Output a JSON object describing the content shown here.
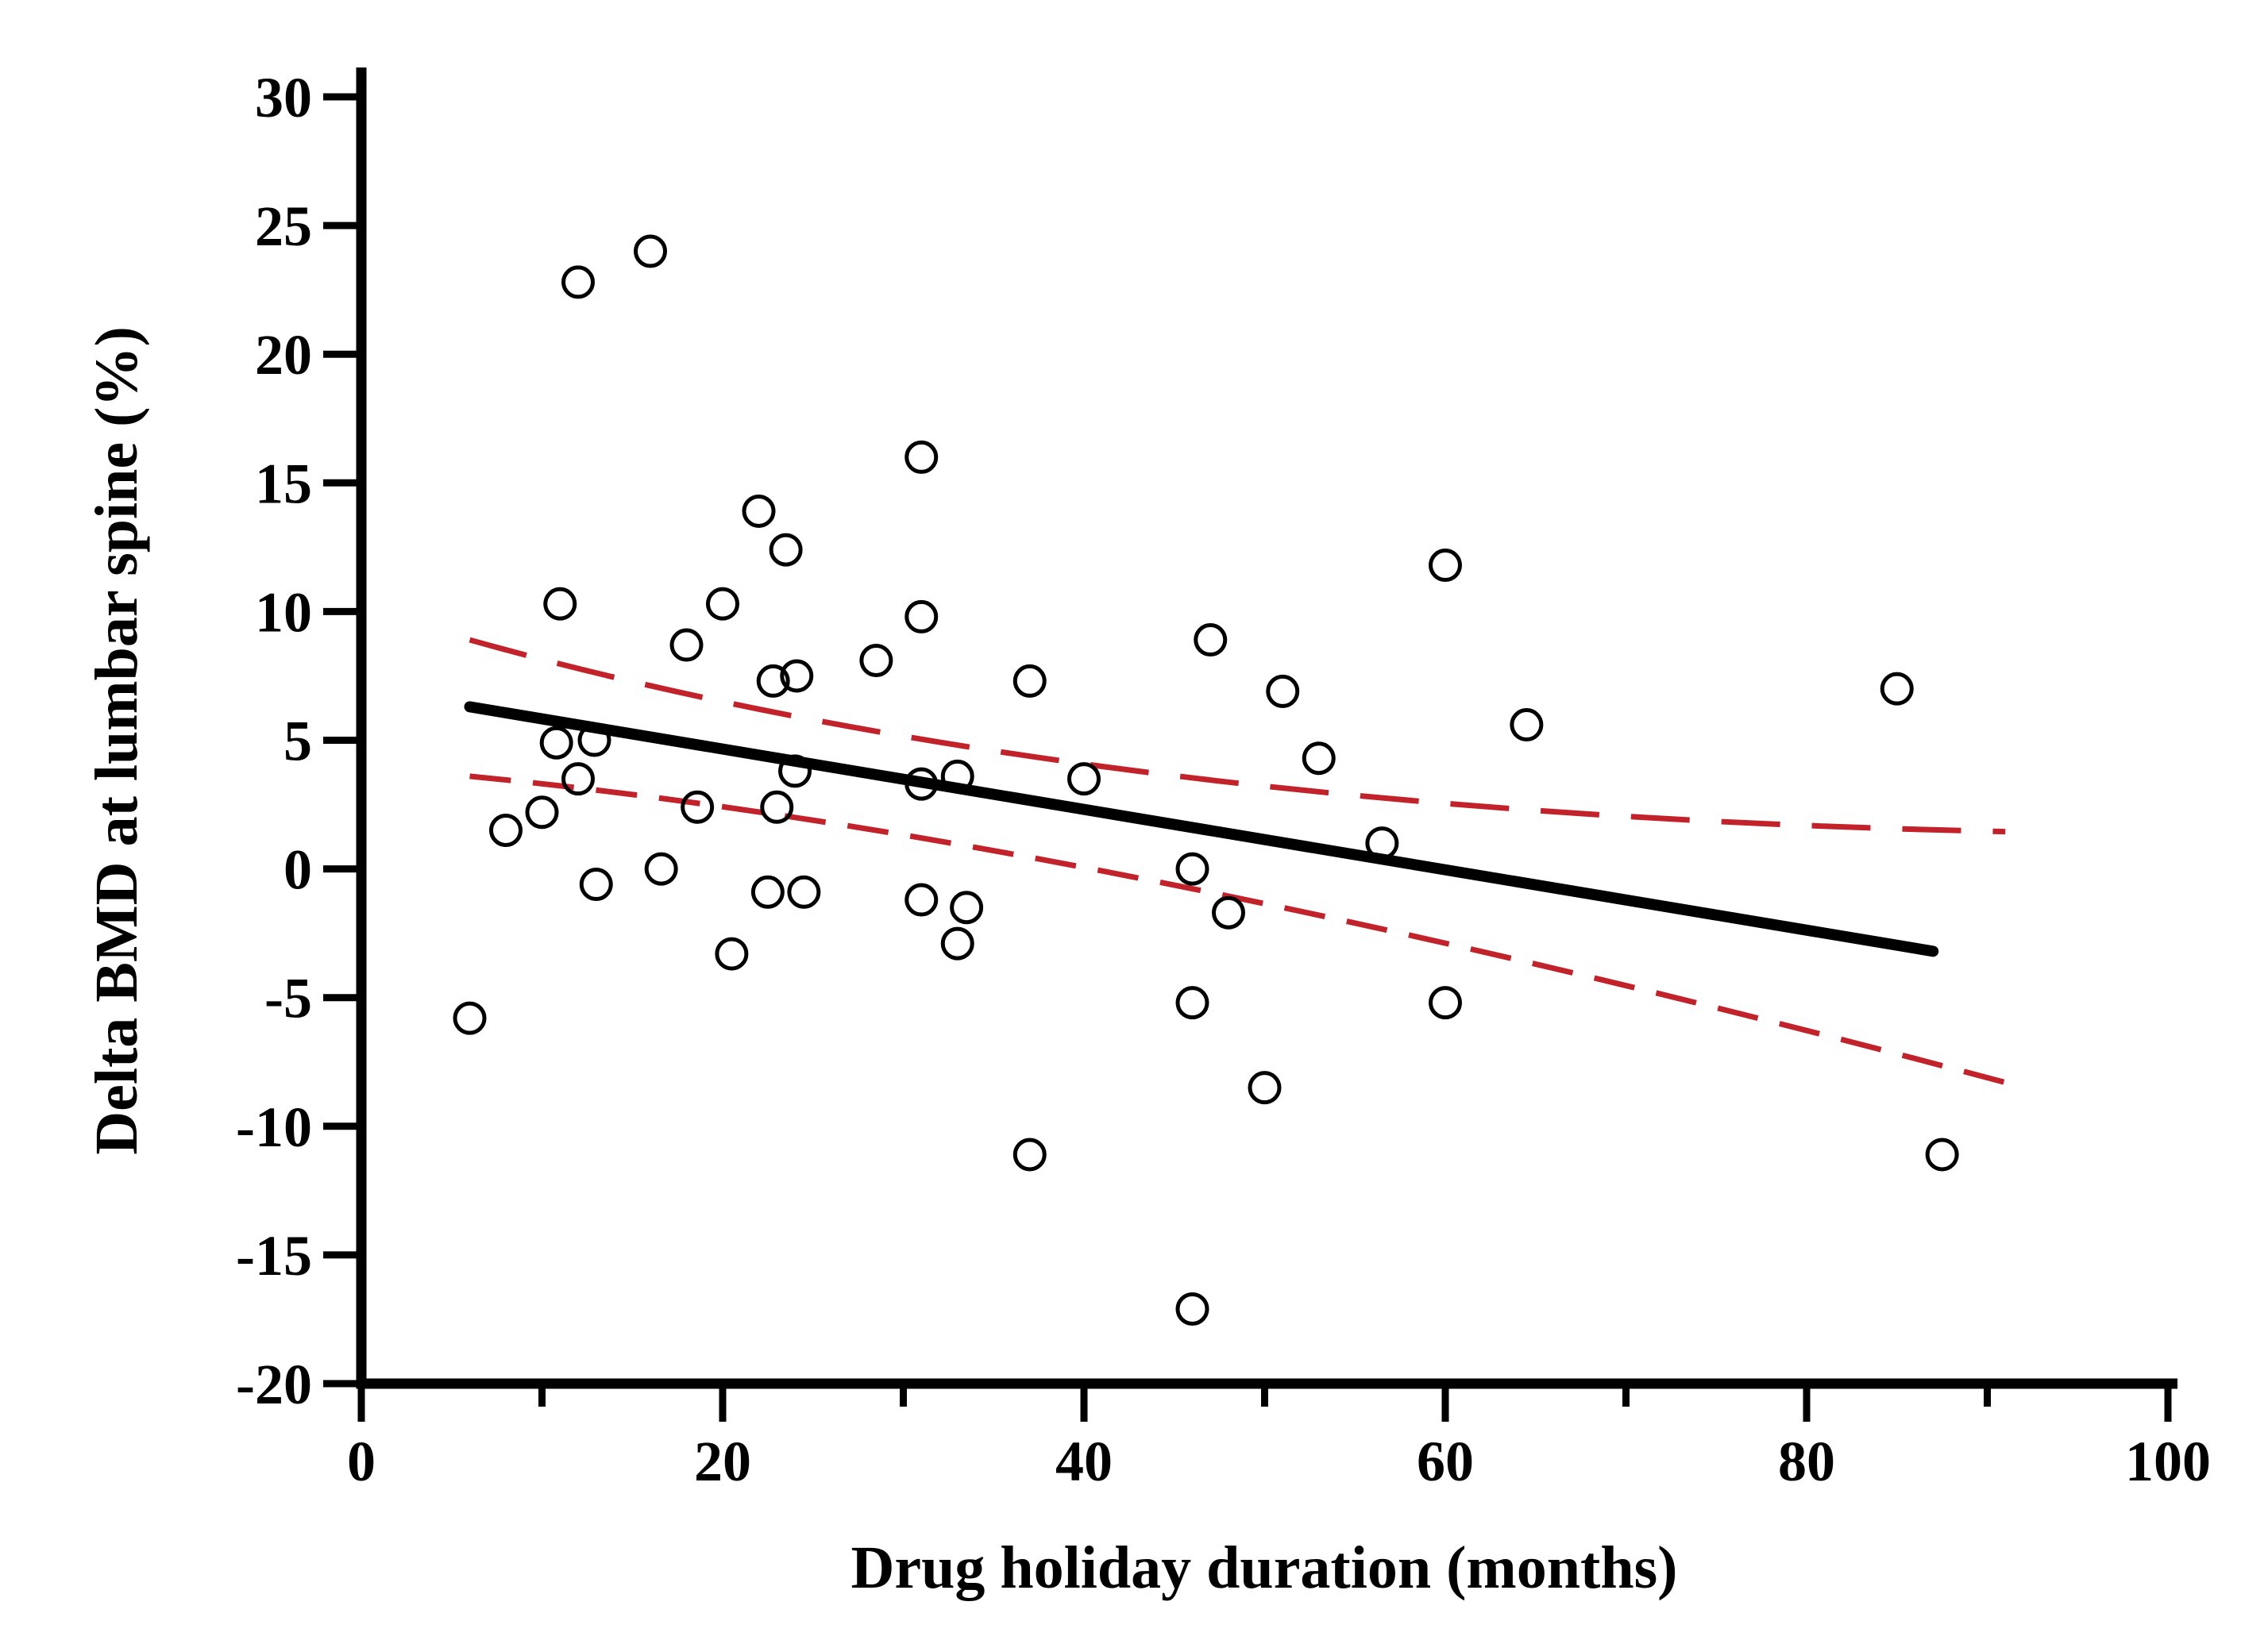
{
  "chart_data": {
    "type": "scatter",
    "title": "",
    "xlabel": "Drug holiday duration (months)",
    "ylabel": "Delta BMD at lumbar spine (%)",
    "xlim": [
      0,
      100
    ],
    "ylim": [
      -20,
      30
    ],
    "grid": false,
    "legend": "none",
    "x_major_ticks": [
      0,
      20,
      40,
      60,
      80,
      100
    ],
    "x_minor_ticks": [
      10,
      30,
      50,
      70,
      90
    ],
    "y_major_ticks": [
      30,
      25,
      20,
      15,
      10,
      5,
      0,
      -5,
      -10,
      -15,
      -20
    ],
    "marker": {
      "shape": "open-circle",
      "color": "#000000"
    },
    "points": [
      [
        12,
        22.8
      ],
      [
        16,
        24.0
      ],
      [
        31,
        16.0
      ],
      [
        22,
        13.9
      ],
      [
        23.5,
        12.4
      ],
      [
        11,
        10.3
      ],
      [
        20,
        10.3
      ],
      [
        60,
        11.8
      ],
      [
        31,
        9.8
      ],
      [
        18,
        8.7
      ],
      [
        47,
        8.9
      ],
      [
        22.8,
        7.3
      ],
      [
        24.1,
        7.5
      ],
      [
        28.5,
        8.1
      ],
      [
        37,
        7.3
      ],
      [
        51,
        6.9
      ],
      [
        85,
        7.0
      ],
      [
        64.5,
        5.6
      ],
      [
        10.8,
        4.9
      ],
      [
        12.9,
        5.0
      ],
      [
        12,
        3.5
      ],
      [
        53,
        4.3
      ],
      [
        8,
        1.5
      ],
      [
        10,
        2.2
      ],
      [
        18.6,
        2.4
      ],
      [
        23,
        2.4
      ],
      [
        24,
        3.8
      ],
      [
        31,
        3.3
      ],
      [
        33,
        3.6
      ],
      [
        40,
        3.5
      ],
      [
        56.5,
        1.0
      ],
      [
        46,
        0.0
      ],
      [
        16.6,
        0.0
      ],
      [
        13,
        -0.6
      ],
      [
        22.5,
        -0.9
      ],
      [
        24.5,
        -0.9
      ],
      [
        31,
        -1.2
      ],
      [
        33.5,
        -1.5
      ],
      [
        33,
        -2.9
      ],
      [
        20.5,
        -3.3
      ],
      [
        48,
        -1.7
      ],
      [
        46,
        -5.2
      ],
      [
        60,
        -5.2
      ],
      [
        6,
        -5.8
      ],
      [
        50,
        -8.5
      ],
      [
        37,
        -11.1
      ],
      [
        87.5,
        -11.1
      ],
      [
        46,
        -17.1
      ]
    ],
    "regression_line": {
      "x1": 6,
      "y1": 6.3,
      "x2": 87,
      "y2": -3.2,
      "color": "#000000"
    },
    "confidence_band": {
      "color": "#C2222A",
      "upper": {
        "start": [
          6,
          8.9
        ],
        "control": [
          40,
          2.2
        ],
        "end": [
          91,
          1.45
        ]
      },
      "lower": {
        "start": [
          6,
          3.6
        ],
        "control": [
          40,
          1.3
        ],
        "end": [
          91,
          -8.3
        ]
      }
    }
  }
}
